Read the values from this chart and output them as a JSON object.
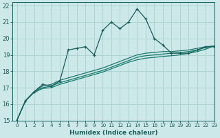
{
  "xlabel": "Humidex (Indice chaleur)",
  "ylabel": "",
  "xlim": [
    -0.5,
    23
  ],
  "ylim": [
    15,
    22.2
  ],
  "xticks": [
    0,
    1,
    2,
    3,
    4,
    5,
    6,
    7,
    8,
    9,
    10,
    11,
    12,
    13,
    14,
    15,
    16,
    17,
    18,
    19,
    20,
    21,
    22,
    23
  ],
  "yticks": [
    15,
    16,
    17,
    18,
    19,
    20,
    21,
    22
  ],
  "bg_color": "#cce8e8",
  "grid_color": "#aed4d4",
  "line_color": "#1a7a6e",
  "line_color2": "#1a5c5a",
  "series_main": [
    0,
    1,
    2,
    3,
    4,
    5,
    6,
    7,
    8,
    9,
    10,
    11,
    12,
    13,
    14,
    15,
    16,
    17,
    18,
    19,
    20,
    21,
    22,
    23
  ],
  "y_main": [
    15.0,
    16.2,
    16.75,
    17.2,
    17.1,
    17.4,
    19.3,
    19.4,
    19.5,
    19.0,
    20.5,
    21.0,
    20.6,
    21.0,
    21.8,
    21.2,
    20.0,
    19.6,
    19.1,
    19.1,
    19.1,
    19.3,
    19.5,
    19.5
  ],
  "y_smooth1": [
    15.0,
    16.2,
    16.75,
    17.1,
    17.2,
    17.45,
    17.6,
    17.75,
    17.9,
    18.05,
    18.2,
    18.4,
    18.6,
    18.8,
    19.0,
    19.1,
    19.15,
    19.2,
    19.2,
    19.25,
    19.3,
    19.4,
    19.5,
    19.55
  ],
  "y_smooth2": [
    15.0,
    16.2,
    16.75,
    17.0,
    17.1,
    17.3,
    17.45,
    17.6,
    17.75,
    17.9,
    18.05,
    18.25,
    18.45,
    18.65,
    18.85,
    18.95,
    19.0,
    19.05,
    19.1,
    19.15,
    19.2,
    19.3,
    19.45,
    19.55
  ],
  "y_smooth3": [
    15.0,
    16.2,
    16.7,
    16.95,
    17.0,
    17.2,
    17.35,
    17.5,
    17.65,
    17.8,
    17.95,
    18.15,
    18.35,
    18.55,
    18.7,
    18.8,
    18.85,
    18.9,
    18.95,
    19.0,
    19.1,
    19.2,
    19.35,
    19.55
  ]
}
